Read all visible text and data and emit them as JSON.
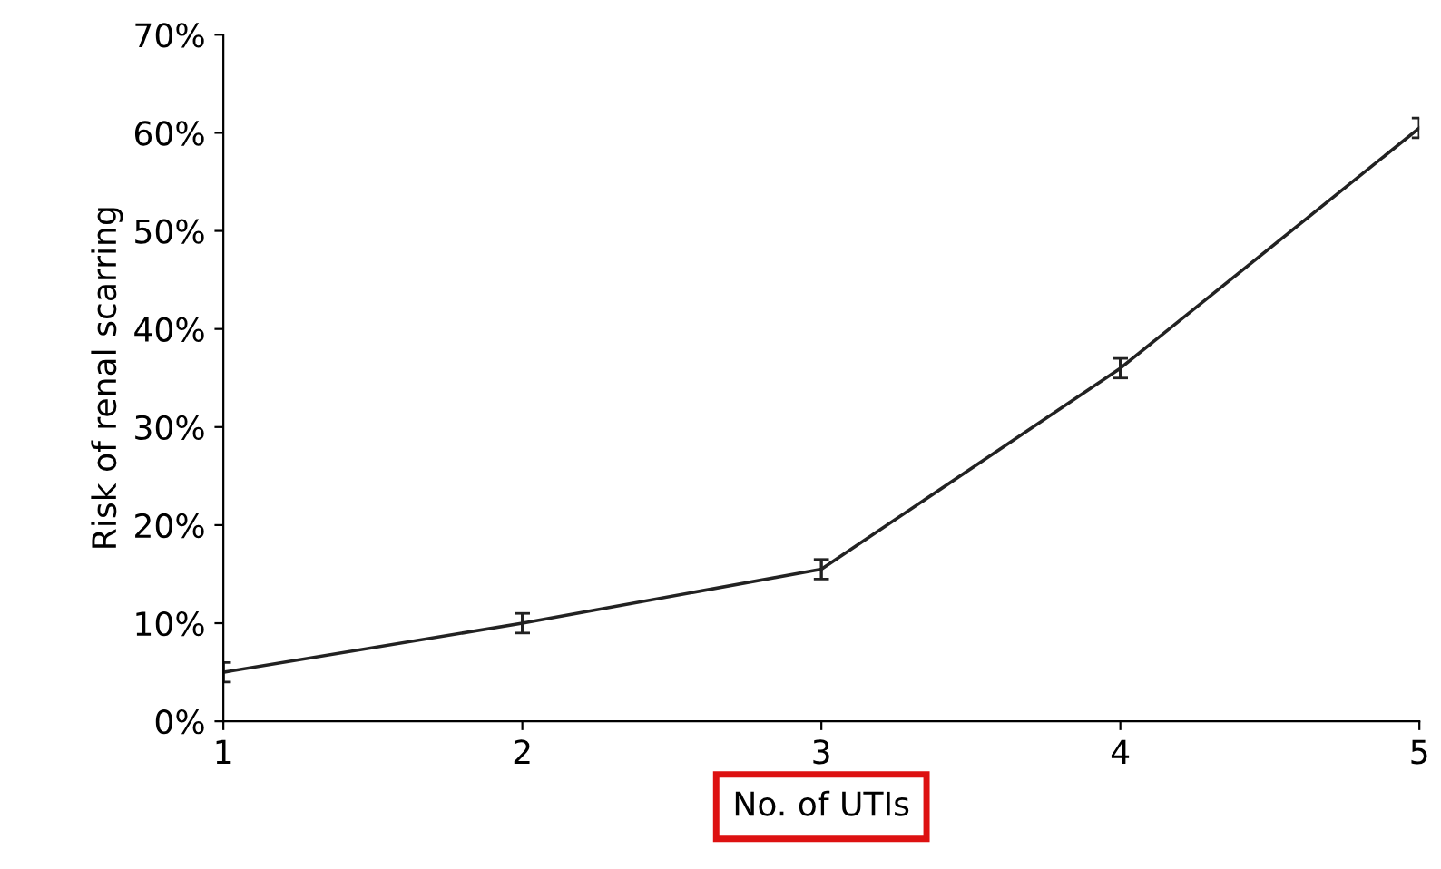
{
  "chart_data": {
    "type": "line",
    "xlabel": "No. of UTIs",
    "ylabel": "Risk of renal scarring",
    "x": [
      1,
      2,
      3,
      4,
      5
    ],
    "series": [
      {
        "color": "#222222",
        "values": [
          5,
          10,
          15.5,
          36,
          60.5
        ],
        "errors": [
          1,
          1,
          1,
          1,
          1
        ]
      }
    ],
    "xlim": [
      1,
      5
    ],
    "xticks": [
      1,
      2,
      3,
      4,
      5
    ],
    "ylim": [
      0,
      70
    ],
    "yticks": [
      {
        "value": 0,
        "label": "0%"
      },
      {
        "value": 10,
        "label": "10%"
      },
      {
        "value": 20,
        "label": "20%"
      },
      {
        "value": 30,
        "label": "30%"
      },
      {
        "value": 40,
        "label": "40%"
      },
      {
        "value": 50,
        "label": "50%"
      },
      {
        "value": 60,
        "label": "60%"
      },
      {
        "value": 70,
        "label": "70%"
      }
    ],
    "grid": false,
    "legend": false,
    "marker": "none",
    "line_style": "solid"
  }
}
